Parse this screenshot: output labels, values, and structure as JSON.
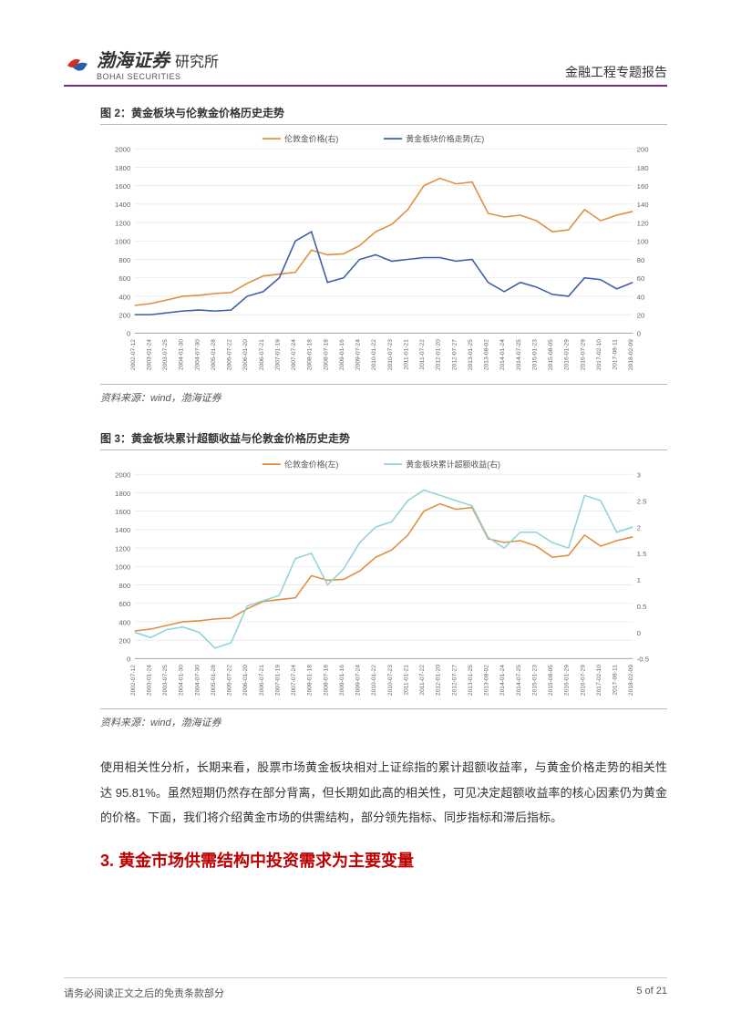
{
  "header": {
    "company_cn": "渤海证券",
    "company_en": "BOHAI SECURITIES",
    "dept": "研究所",
    "right_text": "金融工程专题报告"
  },
  "logo": {
    "red_color": "#d52b2b",
    "blue_color": "#2a5fa8",
    "underline_color": "#7a2a8a"
  },
  "figure1": {
    "title": "图 2：黄金板块与伦敦金价格历史走势",
    "source": "资料来源：wind，渤海证券",
    "legend": [
      "伦敦金价格(右)",
      "黄金板块价格走势(左)"
    ],
    "series_colors": [
      "#e08e3d",
      "#3b5ea8"
    ],
    "left_axis": {
      "min": 0,
      "max": 2000,
      "step": 200
    },
    "right_axis": {
      "min": 0,
      "max": 200,
      "step": 20
    },
    "x_labels": [
      "2002-07-12",
      "2003-01-24",
      "2003-07-25",
      "2004-01-30",
      "2004-07-30",
      "2005-01-28",
      "2005-07-22",
      "2006-01-20",
      "2006-07-21",
      "2007-01-19",
      "2007-07-24",
      "2008-01-18",
      "2008-07-18",
      "2009-01-16",
      "2009-07-24",
      "2010-01-22",
      "2010-07-23",
      "2011-01-21",
      "2011-07-22",
      "2012-01-20",
      "2012-07-27",
      "2013-01-25",
      "2013-08-02",
      "2014-01-24",
      "2014-07-25",
      "2015-01-23",
      "2015-08-05",
      "2016-01-29",
      "2016-07-29",
      "2017-02-10",
      "2017-08-11",
      "2018-02-09"
    ],
    "gold_price": [
      300,
      320,
      360,
      400,
      410,
      430,
      440,
      540,
      620,
      640,
      660,
      900,
      850,
      860,
      950,
      1100,
      1180,
      1340,
      1600,
      1680,
      1620,
      1640,
      1300,
      1260,
      1280,
      1220,
      1100,
      1120,
      1340,
      1220,
      1280,
      1320
    ],
    "sector_price": [
      20,
      20,
      22,
      24,
      25,
      24,
      25,
      40,
      45,
      60,
      100,
      110,
      55,
      60,
      80,
      85,
      78,
      80,
      82,
      82,
      78,
      80,
      55,
      45,
      55,
      50,
      42,
      40,
      60,
      58,
      48,
      55
    ],
    "bg_color": "#ffffff",
    "grid_color": "#e5e5e5",
    "axis_font_size": 7,
    "legend_font_size": 8
  },
  "figure2": {
    "title": "图 3：黄金板块累计超额收益与伦敦金价格历史走势",
    "source": "资料来源：wind，渤海证券",
    "legend": [
      "伦敦金价格(左)",
      "黄金板块累计超额收益(右)"
    ],
    "series_colors": [
      "#e08e3d",
      "#8fd4d9"
    ],
    "left_axis": {
      "min": 0,
      "max": 2000,
      "step": 200
    },
    "right_axis": {
      "min": -0.5,
      "max": 3,
      "step": 0.5
    },
    "x_labels": [
      "2002-07-12",
      "2003-01-24",
      "2003-07-25",
      "2004-01-30",
      "2004-07-30",
      "2005-01-28",
      "2005-07-22",
      "2006-01-20",
      "2006-07-21",
      "2007-01-19",
      "2007-07-24",
      "2008-01-18",
      "2008-07-18",
      "2009-01-16",
      "2009-07-24",
      "2010-01-22",
      "2010-07-23",
      "2011-01-21",
      "2011-07-22",
      "2012-01-20",
      "2012-07-27",
      "2013-01-25",
      "2013-08-02",
      "2014-01-24",
      "2014-07-25",
      "2015-01-23",
      "2015-08-05",
      "2016-01-29",
      "2016-07-29",
      "2017-02-10",
      "2017-08-11",
      "2018-02-09"
    ],
    "gold_price": [
      300,
      320,
      360,
      400,
      410,
      430,
      440,
      540,
      620,
      640,
      660,
      900,
      850,
      860,
      950,
      1100,
      1180,
      1340,
      1600,
      1680,
      1620,
      1640,
      1300,
      1260,
      1280,
      1220,
      1100,
      1120,
      1340,
      1220,
      1280,
      1320
    ],
    "excess_return": [
      0,
      -0.1,
      0.05,
      0.1,
      0.0,
      -0.3,
      -0.2,
      0.5,
      0.6,
      0.7,
      1.4,
      1.5,
      0.9,
      1.2,
      1.7,
      2.0,
      2.1,
      2.5,
      2.7,
      2.6,
      2.5,
      2.4,
      1.8,
      1.6,
      1.9,
      1.9,
      1.7,
      1.6,
      2.6,
      2.5,
      1.9,
      2.0
    ],
    "bg_color": "#ffffff",
    "grid_color": "#e5e5e5",
    "axis_font_size": 7,
    "legend_font_size": 8
  },
  "body_paragraph": "使用相关性分析，长期来看，股票市场黄金板块相对上证综指的累计超额收益率，与黄金价格走势的相关性达 95.81%。虽然短期仍然存在部分背离，但长期如此高的相关性，可见决定超额收益率的核心因素仍为黄金的价格。下面，我们将介绍黄金市场的供需结构，部分领先指标、同步指标和滞后指标。",
  "section_heading": "3. 黄金市场供需结构中投资需求为主要变量",
  "footer": {
    "left": "请务必阅读正文之后的免责条款部分",
    "right": "5 of 21"
  }
}
